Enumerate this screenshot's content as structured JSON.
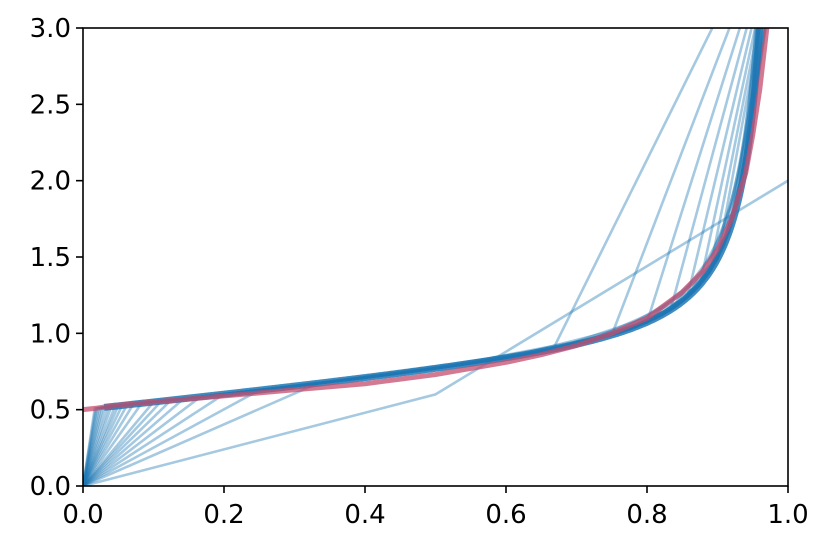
{
  "chart_data": {
    "type": "line",
    "title": "",
    "xlabel": "",
    "ylabel": "",
    "xlim": [
      0.0,
      1.0
    ],
    "ylim": [
      0.0,
      3.0
    ],
    "grid": false,
    "legend": null,
    "x_ticks": [
      "0.0",
      "0.2",
      "0.4",
      "0.6",
      "0.8",
      "1.0"
    ],
    "y_ticks": [
      "0.0",
      "0.5",
      "1.0",
      "1.5",
      "2.0",
      "2.5",
      "3.0"
    ],
    "colors": {
      "approximation": "#1f77b4",
      "target": "#c44e6e"
    },
    "piecewise_linear_approximations": {
      "description_values": "Family of piecewise-linear interpolants of the target curve with n = 2..60 uniform segments, each starting at (0, 0) and drawn as faint blue lines.",
      "n_segments": [
        2,
        3,
        4,
        5,
        6,
        7,
        8,
        9,
        10,
        12,
        14,
        16,
        18,
        20,
        22,
        25,
        28,
        32,
        36,
        40,
        45,
        50,
        55,
        60
      ]
    },
    "series": [
      {
        "x": [
          0.0,
          0.5,
          1.0
        ],
        "y": [
          0.0,
          0.6,
          2.0
        ]
      },
      {
        "x": [
          0.0,
          0.02,
          0.05,
          0.1,
          0.15,
          0.2,
          0.25,
          0.3,
          0.35,
          0.4,
          0.45,
          0.5,
          0.55,
          0.6,
          0.65,
          0.7,
          0.75,
          0.8,
          0.85,
          0.88,
          0.9,
          0.92,
          0.94,
          0.95,
          0.96,
          0.965,
          0.97
        ],
        "y": [
          0.5,
          0.51,
          0.53,
          0.55,
          0.57,
          0.59,
          0.61,
          0.63,
          0.65,
          0.67,
          0.7,
          0.73,
          0.77,
          0.81,
          0.86,
          0.92,
          1.0,
          1.1,
          1.27,
          1.41,
          1.55,
          1.75,
          2.05,
          2.3,
          2.6,
          2.8,
          3.0
        ]
      }
    ]
  }
}
